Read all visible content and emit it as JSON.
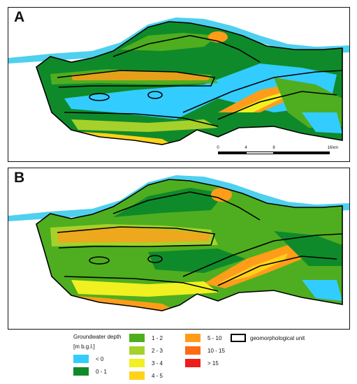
{
  "panels": [
    {
      "label": "A"
    },
    {
      "label": "B"
    }
  ],
  "scalebar": {
    "ticks": [
      "0",
      "4",
      "8",
      "16"
    ],
    "tick_values_km": [
      0,
      4,
      8,
      16
    ],
    "unit": "km"
  },
  "legend": {
    "title": "Groundwater depth",
    "units": "[m b.g.l.]",
    "classes": [
      {
        "label": "< 0",
        "color": "#33ccff"
      },
      {
        "label": "0 - 1",
        "color": "#0f8a2a"
      },
      {
        "label": "1 - 2",
        "color": "#4fae1f"
      },
      {
        "label": "2 - 3",
        "color": "#a6d12a"
      },
      {
        "label": "3 - 4",
        "color": "#f1f020"
      },
      {
        "label": "4 - 5",
        "color": "#ffd21a"
      },
      {
        "label": "5 - 10",
        "color": "#ff9d1a"
      },
      {
        "label": "10 - 15",
        "color": "#ff6a12"
      },
      {
        "label": "> 15",
        "color": "#ee1c1c"
      }
    ],
    "boundary_label": "geomorphological unit"
  },
  "colors": {
    "river": "#4fd0ef",
    "boundary": "#000000"
  }
}
